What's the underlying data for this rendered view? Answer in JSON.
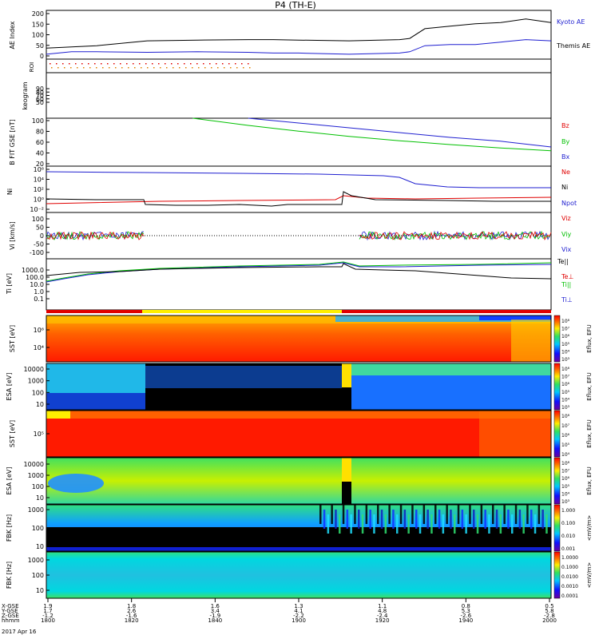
{
  "title": "P4 (TH-E)",
  "colors": {
    "black": "#000000",
    "blue": "#1f1fd0",
    "red": "#e00000",
    "green": "#00c000",
    "yellow": "#ffee00"
  },
  "chart_data": [
    {
      "type": "line",
      "panel": "ae",
      "ylabel": "AE Index",
      "ylim": [
        0,
        200
      ],
      "yticks": [
        "200",
        "150",
        "100",
        "50",
        "0"
      ],
      "x": [
        0,
        5,
        10,
        20,
        30,
        40,
        45,
        50,
        60,
        70,
        72,
        75,
        80,
        85,
        90,
        95,
        100
      ],
      "series": [
        {
          "name": "Kyoto AE",
          "color": "#000000",
          "values": [
            45,
            50,
            55,
            75,
            78,
            80,
            80,
            78,
            75,
            80,
            85,
            125,
            135,
            145,
            150,
            165,
            150
          ]
        },
        {
          "name": "Themis AE",
          "color": "#1f1fd0",
          "values": [
            20,
            30,
            30,
            28,
            30,
            28,
            25,
            25,
            20,
            25,
            30,
            55,
            60,
            60,
            70,
            80,
            75
          ]
        }
      ]
    },
    {
      "type": "scatter",
      "panel": "roi",
      "ylabel": "ROI",
      "ylim": [
        0,
        1
      ]
    },
    {
      "type": "heatmap",
      "panel": "keogram",
      "ylabel": "keogram",
      "yticks": [
        "90",
        "80",
        "70",
        "60",
        "50"
      ]
    },
    {
      "type": "line",
      "panel": "bgse",
      "ylabel": "B FIT GSE [nT]",
      "ylim": [
        0,
        100
      ],
      "yticks": [
        "100",
        "80",
        "60",
        "40",
        "20"
      ],
      "x": [
        29,
        40,
        50,
        60,
        70,
        80,
        90,
        100
      ],
      "series": [
        {
          "name": "Bz",
          "color": "#e00000",
          "values": [
            null,
            null,
            null,
            null,
            null,
            null,
            null,
            null
          ]
        },
        {
          "name": "By",
          "color": "#00c000",
          "values": [
            100,
            85,
            73,
            62,
            53,
            45,
            38,
            32
          ]
        },
        {
          "name": "Bx",
          "color": "#1f1fd0",
          "values": [
            null,
            100,
            90,
            80,
            70,
            60,
            52,
            40
          ]
        }
      ]
    },
    {
      "type": "line",
      "panel": "density",
      "ylabel": "Ni",
      "yticks": [
        "10⁶",
        "10⁴",
        "10²",
        "10⁰",
        "10⁻²"
      ],
      "series": [
        {
          "name": "Ne",
          "color": "#e00000"
        },
        {
          "name": "Ni",
          "color": "#000000"
        },
        {
          "name": "Npot",
          "color": "#1f1fd0"
        }
      ]
    },
    {
      "type": "line",
      "panel": "velocity",
      "ylabel": "Vi [km/s]",
      "ylim": [
        -150,
        150
      ],
      "yticks": [
        "100",
        "50",
        "0",
        "-50",
        "-100"
      ],
      "series": [
        {
          "name": "Viz",
          "color": "#e00000"
        },
        {
          "name": "Viy",
          "color": "#00c000"
        },
        {
          "name": "Vix",
          "color": "#1f1fd0"
        }
      ]
    },
    {
      "type": "line",
      "panel": "temperature",
      "ylabel": "Ti [eV]",
      "yticks": [
        "1000.0",
        "100.0",
        "10.0",
        "1.0",
        "0.1"
      ],
      "series": [
        {
          "name": "Te||",
          "color": "#000000"
        },
        {
          "name": "Te⊥",
          "color": "#e00000"
        },
        {
          "name": "Ti||",
          "color": "#00c000"
        },
        {
          "name": "Ti⊥",
          "color": "#1f1fd0"
        }
      ]
    },
    {
      "type": "heatmap",
      "panel": "sst_e",
      "ylabel": "SST [eV]",
      "yticks": [
        "10⁶",
        "10⁴"
      ],
      "colorbar_label": "Eflux, EFU",
      "colorbar_ticks": [
        "10⁸",
        "10⁷",
        "10⁶",
        "10⁵",
        "10⁴",
        "10³"
      ]
    },
    {
      "type": "heatmap",
      "panel": "esa_e",
      "ylabel": "ESA [eV]",
      "yticks": [
        "10000",
        "1000",
        "100",
        "10"
      ],
      "colorbar_label": "Eflux, EFU",
      "colorbar_ticks": [
        "10⁸",
        "10⁷",
        "10⁶",
        "10⁵",
        "10⁴",
        "10³"
      ]
    },
    {
      "type": "heatmap",
      "panel": "sst_i",
      "ylabel": "SST [eV]",
      "yticks": [
        "10⁵"
      ],
      "colorbar_label": "Eflux, EFU",
      "colorbar_ticks": [
        "10⁸",
        "10⁷",
        "10⁶",
        "10⁵",
        "10⁴"
      ]
    },
    {
      "type": "heatmap",
      "panel": "esa_i",
      "ylabel": "ESA [eV]",
      "yticks": [
        "10000",
        "1000",
        "100",
        "10"
      ],
      "colorbar_label": "Eflux, EFU",
      "colorbar_ticks": [
        "10⁸",
        "10⁷",
        "10⁶",
        "10⁵",
        "10⁴",
        "10³"
      ]
    },
    {
      "type": "heatmap",
      "panel": "fbk_e",
      "ylabel": "FBK [Hz]",
      "yticks": [
        "1000",
        "100",
        "10"
      ],
      "colorbar_label": "<mV/m>",
      "colorbar_ticks": [
        "1.000",
        "0.100",
        "0.010",
        "0.001"
      ]
    },
    {
      "type": "heatmap",
      "panel": "fbk_b",
      "ylabel": "FBK [Hz]",
      "yticks": [
        "1000",
        "100",
        "10"
      ],
      "colorbar_label": "<mV/m>",
      "colorbar_ticks": [
        "1.0000",
        "0.1000",
        "0.0100",
        "0.0010",
        "0.0001"
      ]
    }
  ],
  "xaxis": {
    "row_labels": [
      "X-GSE",
      "Y-GSE",
      "Z-GSE",
      "hhmm",
      "2017 Apr 16"
    ],
    "ticks": [
      {
        "x_gse": "1.9",
        "y_gse": "1.7",
        "z_gse": "-1.2",
        "time": "1800"
      },
      {
        "x_gse": "1.8",
        "y_gse": "2.6",
        "z_gse": "-1.6",
        "time": "1820"
      },
      {
        "x_gse": "1.6",
        "y_gse": "3.4",
        "z_gse": "-1.9",
        "time": "1840"
      },
      {
        "x_gse": "1.3",
        "y_gse": "4.1",
        "z_gse": "-2.2",
        "time": "1900"
      },
      {
        "x_gse": "1.1",
        "y_gse": "4.8",
        "z_gse": "-2.4",
        "time": "1920"
      },
      {
        "x_gse": "0.8",
        "y_gse": "5.3",
        "z_gse": "-2.6",
        "time": "1940"
      },
      {
        "x_gse": "0.5",
        "y_gse": "5.8",
        "z_gse": "-2.8",
        "time": "2000"
      }
    ]
  }
}
